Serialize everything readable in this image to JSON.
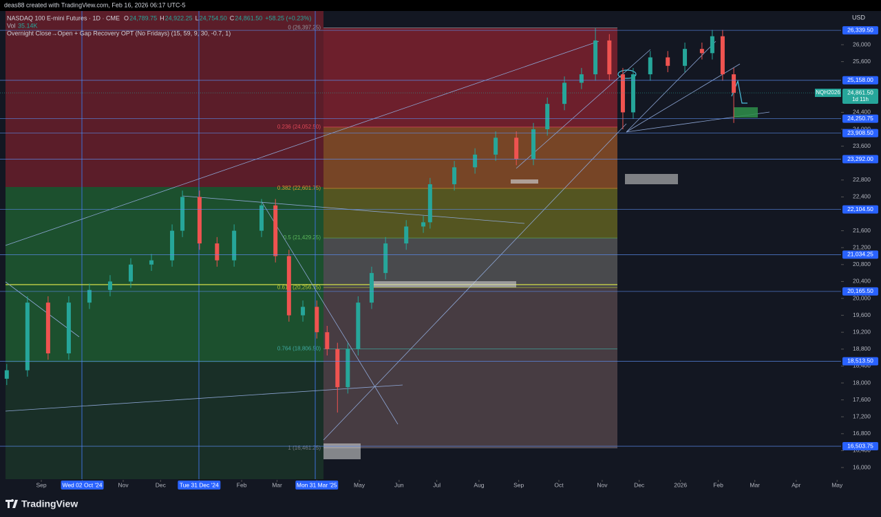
{
  "chart_data": {
    "type": "candlestick",
    "credit": "deas88 created with TradingView.com, Feb 16, 2026 06:17 UTC-5",
    "symbol": "NASDAQ 100 E-mini Futures · 1D · CME",
    "ohlc": [
      {
        "label": "O",
        "value": "24,789.75"
      },
      {
        "label": "H",
        "value": "24,922.25"
      },
      {
        "label": "L",
        "value": "24,754.50"
      },
      {
        "label": "C",
        "value": "24,861.50"
      }
    ],
    "change": "+58.25 (+0.23%)",
    "volume_label": "Vol",
    "volume_value": "35.14K",
    "indicator": "Overnight Close→Open + Gap Recovery OPT (No Fridays) (15, 59, 9, 30, -0.7, 1)",
    "currency": "USD",
    "brand": "TradingView",
    "x": [
      0.13,
      0.65,
      1.17,
      1.69,
      2.21,
      2.73,
      3.25,
      3.77,
      4.29,
      4.55,
      4.98,
      5.42,
      5.85,
      6.54,
      6.89,
      7.23,
      7.58,
      7.93,
      8.19,
      8.45,
      8.71,
      8.97,
      9.31,
      9.66,
      10.18,
      10.61,
      10.78,
      11.39,
      11.91,
      12.43,
      12.95,
      13.38,
      13.73,
      14.16,
      14.59,
      14.94,
      15.29,
      15.63,
      15.89,
      16.32,
      16.76,
      17.19,
      17.62,
      17.88,
      18.14,
      18.42
    ],
    "open": [
      18100,
      18300,
      19900,
      18700,
      19900,
      20200,
      20400,
      20800,
      20900,
      21600,
      22400,
      21300,
      20900,
      21600,
      22200,
      21000,
      19600,
      19800,
      19200,
      18800,
      17900,
      18800,
      19900,
      20600,
      21300,
      21700,
      21800,
      22700,
      23100,
      23400,
      23800,
      23300,
      24000,
      24600,
      25100,
      25300,
      26100,
      25300,
      24400,
      25300,
      25700,
      25500,
      25900,
      25800,
      26200,
      25300
    ],
    "high": [
      18450,
      20050,
      20050,
      20050,
      20350,
      20550,
      20950,
      21050,
      21750,
      22550,
      22550,
      21450,
      21750,
      22350,
      22350,
      21150,
      19950,
      19950,
      19350,
      18950,
      18950,
      20050,
      20750,
      21450,
      21850,
      21950,
      22850,
      23250,
      23550,
      23950,
      23950,
      24150,
      24750,
      25250,
      25450,
      26390,
      26250,
      25450,
      25450,
      25850,
      25850,
      26050,
      26050,
      26350,
      26350,
      25450
    ],
    "low": [
      17950,
      18150,
      18550,
      18550,
      19750,
      20050,
      20250,
      20650,
      20750,
      21450,
      21150,
      20750,
      20750,
      21450,
      20850,
      19450,
      19450,
      19050,
      18650,
      17300,
      17750,
      18650,
      19750,
      20450,
      21150,
      21550,
      21650,
      22550,
      22950,
      23250,
      23150,
      23150,
      23850,
      24450,
      24950,
      25150,
      25150,
      24000,
      24250,
      25150,
      25350,
      25350,
      25650,
      25650,
      25150,
      24150
    ],
    "close": [
      18300,
      19900,
      18700,
      19900,
      20200,
      20400,
      20800,
      20900,
      21600,
      22400,
      21300,
      20900,
      21600,
      22200,
      21000,
      19600,
      19800,
      19200,
      18800,
      17900,
      18800,
      19900,
      20600,
      21300,
      21700,
      21800,
      22700,
      23100,
      23400,
      23800,
      23300,
      24000,
      24600,
      25100,
      25300,
      26100,
      25300,
      24400,
      25300,
      25700,
      25500,
      25900,
      25800,
      26200,
      25300,
      24862
    ],
    "up_color": "#26a69a",
    "down_color": "#ef5350",
    "xlim": [
      -0.04,
      21.12
    ],
    "xticks": [
      {
        "value": 1,
        "label": "Sep"
      },
      {
        "value": 2.03,
        "label": "Wed 02 Oct '24",
        "highlight": true
      },
      {
        "value": 3.06,
        "label": "Nov"
      },
      {
        "value": 4.0,
        "label": "Dec"
      },
      {
        "value": 4.97,
        "label": "Tue 31 Dec '24",
        "highlight": true
      },
      {
        "value": 6.04,
        "label": "Feb"
      },
      {
        "value": 6.93,
        "label": "Mar"
      },
      {
        "value": 7.93,
        "label": "Mon 31 Mar '25",
        "highlight": true
      },
      {
        "value": 9.0,
        "label": "May"
      },
      {
        "value": 10.0,
        "label": "Jun"
      },
      {
        "value": 10.95,
        "label": "Jul"
      },
      {
        "value": 12.01,
        "label": "Aug"
      },
      {
        "value": 13.01,
        "label": "Sep"
      },
      {
        "value": 14.02,
        "label": "Oct"
      },
      {
        "value": 15.11,
        "label": "Nov"
      },
      {
        "value": 16.04,
        "label": "Dec"
      },
      {
        "value": 17.08,
        "label": "2026"
      },
      {
        "value": 18.03,
        "label": "Feb"
      },
      {
        "value": 18.95,
        "label": "Mar"
      },
      {
        "value": 19.99,
        "label": "Apr"
      },
      {
        "value": 21.02,
        "label": "May"
      }
    ],
    "ylim": [
      15724,
      26797
    ],
    "yticks": [
      {
        "value": 16000,
        "label": "16,000"
      },
      {
        "value": 16400,
        "label": "16,400"
      },
      {
        "value": 16800,
        "label": "16,800"
      },
      {
        "value": 17200,
        "label": "17,200"
      },
      {
        "value": 17600,
        "label": "17,600"
      },
      {
        "value": 18000,
        "label": "18,000"
      },
      {
        "value": 18400,
        "label": "18,400"
      },
      {
        "value": 18800,
        "label": "18,800"
      },
      {
        "value": 19200,
        "label": "19,200"
      },
      {
        "value": 19600,
        "label": "19,600"
      },
      {
        "value": 20000,
        "label": "20,000"
      },
      {
        "value": 20400,
        "label": "20,400"
      },
      {
        "value": 20800,
        "label": "20,800"
      },
      {
        "value": 21200,
        "label": "21,200"
      },
      {
        "value": 21600,
        "label": "21,600"
      },
      {
        "value": 22400,
        "label": "22,400"
      },
      {
        "value": 22800,
        "label": "22,800"
      },
      {
        "value": 23600,
        "label": "23,600"
      },
      {
        "value": 24000,
        "label": "24,000"
      },
      {
        "value": 24400,
        "label": "24,400"
      },
      {
        "value": 25600,
        "label": "25,600"
      },
      {
        "value": 26000,
        "label": "26,000"
      }
    ],
    "levels": [
      {
        "value": 26339.5,
        "label": "26,339.50"
      },
      {
        "value": 25158,
        "label": "25,158.00"
      },
      {
        "value": 24250.75,
        "label": "24,250.75"
      },
      {
        "value": 23908.5,
        "label": "23,908.50"
      },
      {
        "value": 23292,
        "label": "23,292.00"
      },
      {
        "value": 22104.5,
        "label": "22,104.50"
      },
      {
        "value": 21034.25,
        "label": "21,034.25"
      },
      {
        "value": 20165.5,
        "label": "20,165.50"
      },
      {
        "value": 18513.5,
        "label": "18,513.50"
      },
      {
        "value": 16503.75,
        "label": "16,503.75"
      }
    ],
    "fib": [
      {
        "value": 26397.25,
        "label": "0 (26,397.25)",
        "color": "#9598a1"
      },
      {
        "value": 24052.5,
        "label": "0.236 (24,052.50)",
        "color": "#e04858"
      },
      {
        "value": 22601.75,
        "label": "0.382 (22,601.75)",
        "color": "#d8a030"
      },
      {
        "value": 21429.25,
        "label": "0.5 (21,429.25)",
        "color": "#5cb85c"
      },
      {
        "value": 20256.75,
        "label": "0.618 (20,256.75)",
        "color": "#b8c832"
      },
      {
        "value": 18806.5,
        "label": "0.764 (18,806.50)",
        "color": "#3fa8a0"
      },
      {
        "value": 16461.25,
        "label": "1 (16,461.25)",
        "color": "#787b86"
      }
    ],
    "last_price": {
      "value": 24861.5,
      "label": "24,861.50",
      "symbol": "NQH2026",
      "countdown": "1d 11h"
    }
  }
}
